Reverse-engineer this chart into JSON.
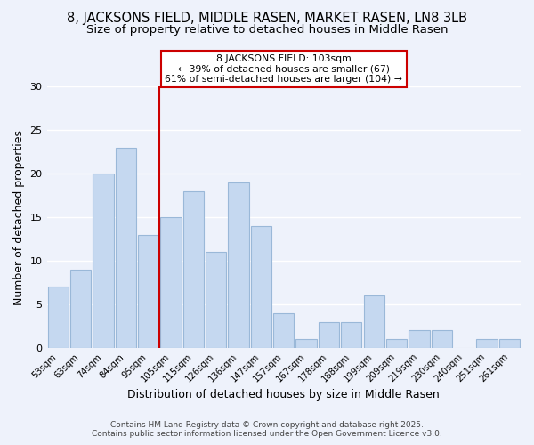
{
  "title1": "8, JACKSONS FIELD, MIDDLE RASEN, MARKET RASEN, LN8 3LB",
  "title2": "Size of property relative to detached houses in Middle Rasen",
  "xlabel": "Distribution of detached houses by size in Middle Rasen",
  "ylabel": "Number of detached properties",
  "categories": [
    "53sqm",
    "63sqm",
    "74sqm",
    "84sqm",
    "95sqm",
    "105sqm",
    "115sqm",
    "126sqm",
    "136sqm",
    "147sqm",
    "157sqm",
    "167sqm",
    "178sqm",
    "188sqm",
    "199sqm",
    "209sqm",
    "219sqm",
    "230sqm",
    "240sqm",
    "251sqm",
    "261sqm"
  ],
  "values": [
    7,
    9,
    20,
    23,
    13,
    15,
    18,
    11,
    19,
    14,
    4,
    1,
    3,
    3,
    6,
    1,
    2,
    2,
    0,
    1,
    1
  ],
  "bar_color": "#c5d8f0",
  "bar_edge_color": "#9ab8d8",
  "red_line_color": "#cc0000",
  "ylim": [
    0,
    30
  ],
  "yticks": [
    0,
    5,
    10,
    15,
    20,
    25,
    30
  ],
  "annotation_title": "8 JACKSONS FIELD: 103sqm",
  "annotation_line1": "← 39% of detached houses are smaller (67)",
  "annotation_line2": "61% of semi-detached houses are larger (104) →",
  "annotation_box_color": "#ffffff",
  "annotation_box_edge": "#cc0000",
  "footer1": "Contains HM Land Registry data © Crown copyright and database right 2025.",
  "footer2": "Contains public sector information licensed under the Open Government Licence v3.0.",
  "bg_color": "#eef2fb",
  "grid_color": "#ffffff",
  "title1_fontsize": 10.5,
  "title2_fontsize": 9.5
}
